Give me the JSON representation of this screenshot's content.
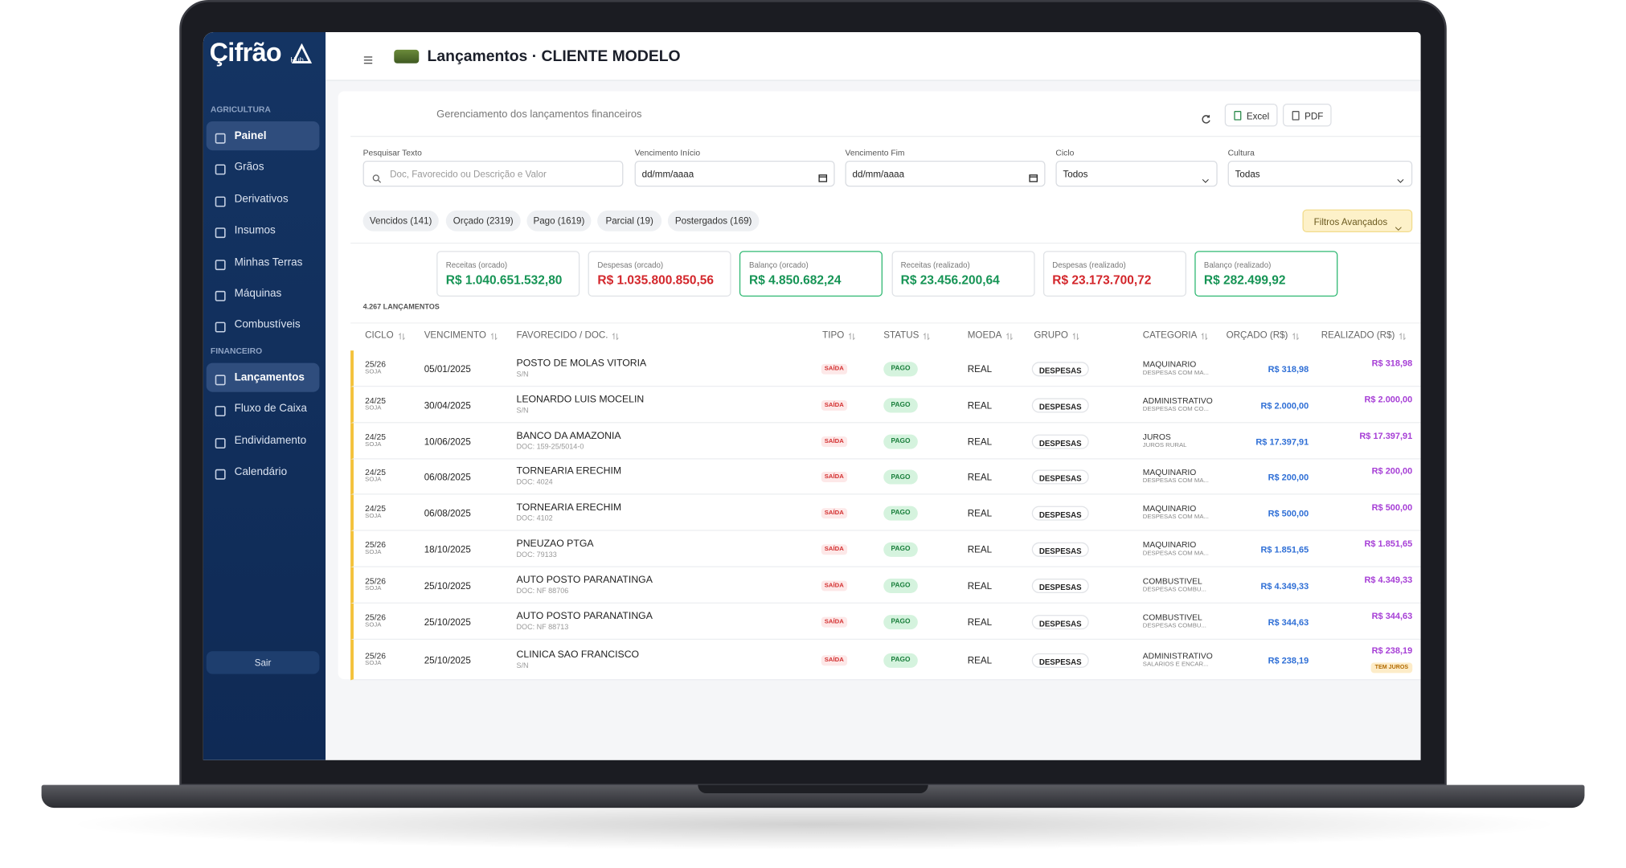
{
  "brand": {
    "name": "Çifrão",
    "sub": "Hub"
  },
  "sidebar": {
    "sections": [
      {
        "title": "AGRICULTURA",
        "items": [
          "Painel",
          "Grãos",
          "Derivativos",
          "Insumos",
          "Minhas Terras",
          "Máquinas",
          "Combustíveis"
        ]
      },
      {
        "title": "FINANCEIRO",
        "items": [
          "Lançamentos",
          "Fluxo de Caixa",
          "Endividamento",
          "Calendário"
        ]
      }
    ],
    "logout": "Sair"
  },
  "header": {
    "title": "Lançamentos · CLIENTE MODELO",
    "subtitle": "Gerenciamento dos lançamentos financeiros",
    "buttons": [
      "Excel",
      "PDF"
    ]
  },
  "filters": [
    {
      "label": "Pesquisar Texto",
      "text": "Doc, Favorecido ou Descrição e Valor"
    },
    {
      "label": "Vencimento Início",
      "text": "dd/mm/aaaa"
    },
    {
      "label": "Vencimento Fim",
      "text": "dd/mm/aaaa"
    },
    {
      "label": "Ciclo",
      "text": "Todos"
    },
    {
      "label": "Cultura",
      "text": "Todas"
    }
  ],
  "chips": [
    "Vencidos (141)",
    "Orçado (2319)",
    "Pago (1619)",
    "Parcial (19)",
    "Postergados (169)"
  ],
  "advanced": "Filtros Avançados",
  "summary": [
    {
      "label": "Receitas (orcado)",
      "value": "R$ 1.040.651.532,80"
    },
    {
      "label": "Despesas (orcado)",
      "value": "R$ 1.035.800.850,56"
    },
    {
      "label": "Balanço (orcado)",
      "value": "R$ 4.850.682,24"
    },
    {
      "label": "Receitas (realizado)",
      "value": "R$ 23.456.200,64"
    },
    {
      "label": "Despesas (realizado)",
      "value": "R$ 23.173.700,72"
    },
    {
      "label": "Balanço (realizado)",
      "value": "R$ 282.499,92"
    }
  ],
  "table": {
    "count": "4.267 LANÇAMENTOS",
    "columns": [
      "CICLO",
      "VENCIMENTO",
      "FAVORECIDO / DOC.",
      "TIPO",
      "STATUS",
      "MOEDA",
      "GRUPO",
      "CATEGORIA",
      "ORÇADO (R$)",
      "REALIZADO (R$)"
    ],
    "rows": [
      {
        "ciclo": "25/26",
        "cultura": "SOJA",
        "venc": "05/01/2025",
        "fav": "POSTO DE MOLAS VITORIA",
        "doc": "S/N",
        "tipo": "SAÍDA",
        "status": "PAGO",
        "moeda": "REAL",
        "grupo": "DESPESAS",
        "cat": "MAQUINARIO",
        "sub": "DESPESAS COM MA...",
        "orcado": "R$ 318,98",
        "realizado": "R$ 318,98"
      },
      {
        "ciclo": "24/25",
        "cultura": "SOJA",
        "venc": "30/04/2025",
        "fav": "LEONARDO LUIS MOCELIN",
        "doc": "S/N",
        "tipo": "SAÍDA",
        "status": "PAGO",
        "moeda": "REAL",
        "grupo": "DESPESAS",
        "cat": "ADMINISTRATIVO",
        "sub": "DESPESAS COM CO...",
        "orcado": "R$ 2.000,00",
        "realizado": "R$ 2.000,00"
      },
      {
        "ciclo": "24/25",
        "cultura": "SOJA",
        "venc": "10/06/2025",
        "fav": "BANCO DA AMAZONIA",
        "doc": "DOC: 159-25/5014-0",
        "tipo": "SAÍDA",
        "status": "PAGO",
        "moeda": "REAL",
        "grupo": "DESPESAS",
        "cat": "JUROS",
        "sub": "JUROS RURAL",
        "orcado": "R$ 17.397,91",
        "realizado": "R$ 17.397,91"
      },
      {
        "ciclo": "24/25",
        "cultura": "SOJA",
        "venc": "06/08/2025",
        "fav": "TORNEARIA ERECHIM",
        "doc": "DOC: 4024",
        "tipo": "SAÍDA",
        "status": "PAGO",
        "moeda": "REAL",
        "grupo": "DESPESAS",
        "cat": "MAQUINARIO",
        "sub": "DESPESAS COM MA...",
        "orcado": "R$ 200,00",
        "realizado": "R$ 200,00"
      },
      {
        "ciclo": "24/25",
        "cultura": "SOJA",
        "venc": "06/08/2025",
        "fav": "TORNEARIA ERECHIM",
        "doc": "DOC: 4102",
        "tipo": "SAÍDA",
        "status": "PAGO",
        "moeda": "REAL",
        "grupo": "DESPESAS",
        "cat": "MAQUINARIO",
        "sub": "DESPESAS COM MA...",
        "orcado": "R$ 500,00",
        "realizado": "R$ 500,00"
      },
      {
        "ciclo": "25/26",
        "cultura": "SOJA",
        "venc": "18/10/2025",
        "fav": "PNEUZAO PTGA",
        "doc": "DOC: 79133",
        "tipo": "SAÍDA",
        "status": "PAGO",
        "moeda": "REAL",
        "grupo": "DESPESAS",
        "cat": "MAQUINARIO",
        "sub": "DESPESAS COM MA...",
        "orcado": "R$ 1.851,65",
        "realizado": "R$ 1.851,65"
      },
      {
        "ciclo": "25/26",
        "cultura": "SOJA",
        "venc": "25/10/2025",
        "fav": "AUTO POSTO PARANATINGA",
        "doc": "DOC: NF 88706",
        "tipo": "SAÍDA",
        "status": "PAGO",
        "moeda": "REAL",
        "grupo": "DESPESAS",
        "cat": "COMBUSTIVEL",
        "sub": "DESPESAS COMBU...",
        "orcado": "R$ 4.349,33",
        "realizado": "R$ 4.349,33"
      },
      {
        "ciclo": "25/26",
        "cultura": "SOJA",
        "venc": "25/10/2025",
        "fav": "AUTO POSTO PARANATINGA",
        "doc": "DOC: NF 88713",
        "tipo": "SAÍDA",
        "status": "PAGO",
        "moeda": "REAL",
        "grupo": "DESPESAS",
        "cat": "COMBUSTIVEL",
        "sub": "DESPESAS COMBU...",
        "orcado": "R$ 344,63",
        "realizado": "R$ 344,63"
      },
      {
        "ciclo": "25/26",
        "cultura": "SOJA",
        "venc": "25/10/2025",
        "fav": "CLINICA SAO FRANCISCO",
        "doc": "S/N",
        "tipo": "SAÍDA",
        "status": "PAGO",
        "moeda": "REAL",
        "grupo": "DESPESAS",
        "cat": "ADMINISTRATIVO",
        "sub": "SALARIOS E ENCAR...",
        "orcado": "R$ 238,19",
        "realizado": "R$ 238,19",
        "tag": "TEM JUROS"
      }
    ]
  }
}
